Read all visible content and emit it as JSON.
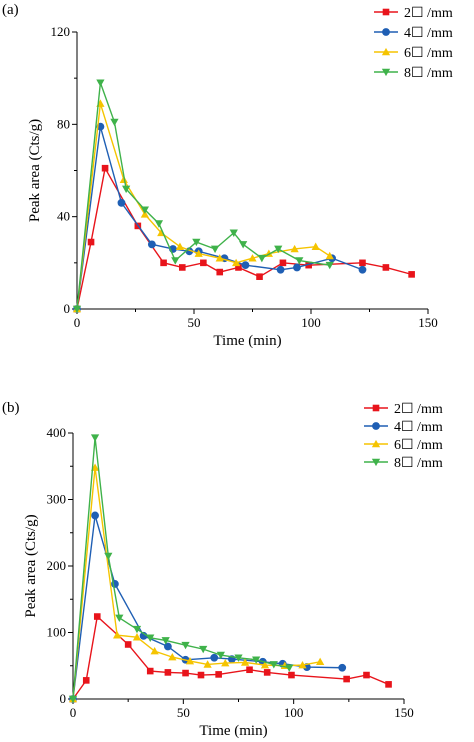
{
  "chart_data": [
    {
      "type": "line",
      "panel_label": "(a)",
      "xlabel": "Time (min)",
      "ylabel": "Peak area (Cts/g)",
      "xlim": [
        0,
        150
      ],
      "ylim": [
        0,
        120
      ],
      "xticks": [
        0,
        50,
        100,
        150
      ],
      "yticks": [
        0,
        40,
        80,
        120
      ],
      "grid": false,
      "legend_position": "top-right",
      "series": [
        {
          "name": "2☐ /mm",
          "color": "#e8141b",
          "marker": "square",
          "x": [
            0,
            6,
            12,
            26,
            37,
            45,
            54,
            61,
            69,
            78,
            88,
            99,
            122,
            132,
            143
          ],
          "y": [
            0,
            29,
            61,
            36,
            20,
            18,
            20,
            16,
            18,
            14,
            20,
            19,
            20,
            18,
            15
          ]
        },
        {
          "name": "4☐ /mm",
          "color": "#1f5fb4",
          "marker": "circle",
          "x": [
            0,
            10,
            19,
            32,
            41,
            48,
            52,
            63,
            72,
            87,
            94,
            109,
            122
          ],
          "y": [
            0,
            79,
            46,
            28,
            26,
            25,
            25,
            22,
            19,
            17,
            18,
            22,
            17
          ]
        },
        {
          "name": "6☐ /mm",
          "color": "#f5c400",
          "marker": "triangle-up",
          "x": [
            0,
            10,
            20,
            29,
            36,
            44,
            52,
            61,
            68,
            75,
            82,
            93,
            102,
            108
          ],
          "y": [
            0,
            89,
            56,
            41,
            33,
            27,
            24,
            22,
            20,
            22,
            24,
            26,
            27,
            23
          ]
        },
        {
          "name": "8☐ /mm",
          "color": "#3fb24a",
          "marker": "triangle-down",
          "x": [
            0,
            10,
            16,
            21,
            29,
            35,
            42,
            51,
            59,
            67,
            71,
            79,
            86,
            95,
            108
          ],
          "y": [
            0,
            98,
            81,
            52,
            43,
            37,
            21,
            29,
            26,
            33,
            28,
            22,
            26,
            21,
            19
          ]
        }
      ]
    },
    {
      "type": "line",
      "panel_label": "(b)",
      "xlabel": "Time (min)",
      "ylabel": "Peak area (Cts/g)",
      "xlim": [
        0,
        150
      ],
      "ylim": [
        0,
        400
      ],
      "xticks": [
        0,
        50,
        100,
        150
      ],
      "yticks": [
        0,
        100,
        200,
        300,
        400
      ],
      "grid": false,
      "legend_position": "top-right",
      "series": [
        {
          "name": "2☐ /mm",
          "color": "#e8141b",
          "marker": "square",
          "x": [
            0,
            6,
            11,
            25,
            35,
            43,
            51,
            58,
            66,
            80,
            88,
            99,
            124,
            133,
            143
          ],
          "y": [
            0,
            28,
            124,
            82,
            42,
            40,
            39,
            36,
            37,
            44,
            40,
            36,
            30,
            36,
            22
          ]
        },
        {
          "name": "4☐ /mm",
          "color": "#1f5fb4",
          "marker": "circle",
          "x": [
            0,
            10,
            19,
            32,
            43,
            51,
            64,
            72,
            86,
            95,
            106,
            122
          ],
          "y": [
            0,
            276,
            173,
            95,
            79,
            59,
            62,
            60,
            56,
            53,
            48,
            47
          ]
        },
        {
          "name": "6☐ /mm",
          "color": "#f5c400",
          "marker": "triangle-up",
          "x": [
            0,
            10,
            20,
            29,
            37,
            45,
            53,
            61,
            69,
            78,
            87,
            96,
            104,
            112
          ],
          "y": [
            0,
            348,
            96,
            93,
            72,
            63,
            57,
            52,
            54,
            55,
            51,
            50,
            51,
            56
          ]
        },
        {
          "name": "8☐ /mm",
          "color": "#3fb24a",
          "marker": "triangle-down",
          "x": [
            0,
            10,
            16,
            21,
            29,
            35,
            42,
            51,
            59,
            67,
            75,
            83,
            91,
            98
          ],
          "y": [
            0,
            393,
            215,
            122,
            105,
            92,
            88,
            81,
            75,
            66,
            62,
            59,
            52,
            47
          ]
        }
      ]
    }
  ]
}
